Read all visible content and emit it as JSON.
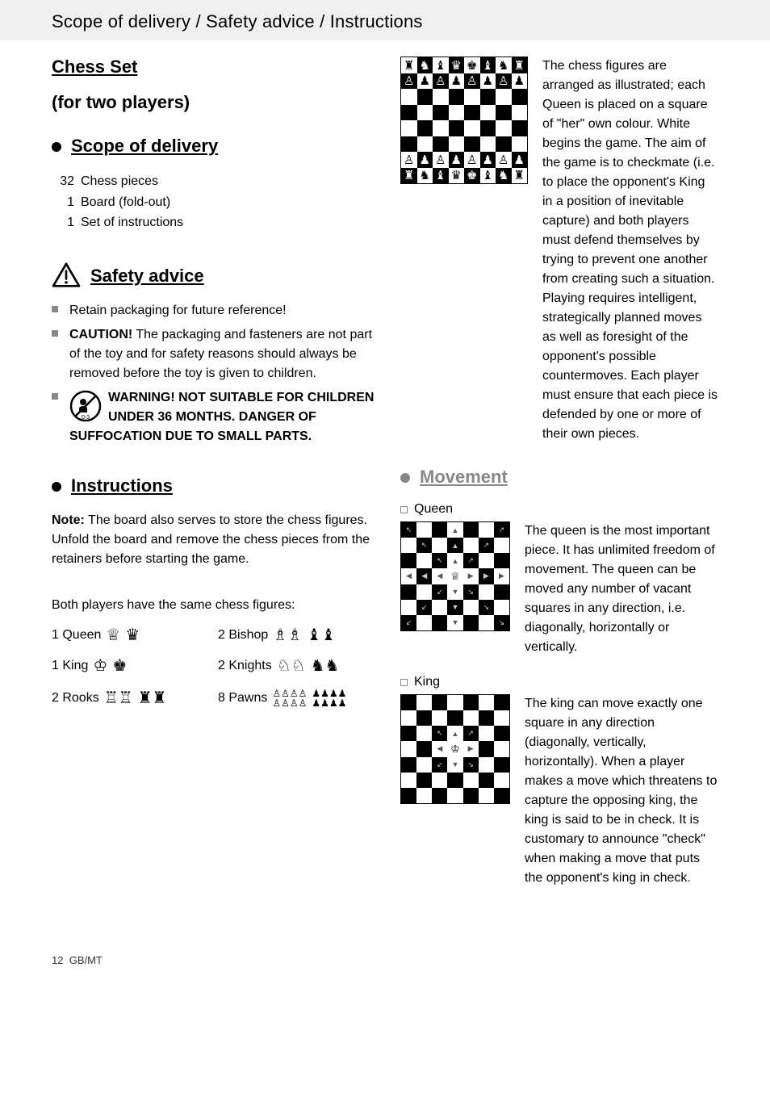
{
  "header": {
    "title": "Scope of delivery / Safety advice / Instructions"
  },
  "title": "Chess Set",
  "subtitle": "(for two players)",
  "sections": {
    "delivery": {
      "heading": "Scope of delivery",
      "items": [
        {
          "qty": "32",
          "label": "Chess pieces"
        },
        {
          "qty": "1",
          "label": "Board (fold-out)"
        },
        {
          "qty": "1",
          "label": "Set of instructions"
        }
      ]
    },
    "safety": {
      "heading": "Safety advice",
      "items": [
        {
          "text": "Retain packaging for future reference!"
        },
        {
          "caution_label": "CAUTION!",
          "text": " The packaging and fasteners are not part of the toy and for safety reasons should always be removed before the toy is given to children."
        },
        {
          "warning": "WARNING! NOT SUITABLE FOR CHILDREN UNDER 36 MONTHS. DANGER OF SUFFOCATION DUE TO SMALL PARTS."
        }
      ],
      "age_icon_label": "0-3"
    },
    "instructions": {
      "heading": "Instructions",
      "note_label": "Note:",
      "note_text": " The board also serves to store the chess figures. Unfold the board and remove the chess pieces from the retainers before starting the game.",
      "pieces_intro": "Both players have the same chess figures:",
      "pieces": [
        {
          "label": "1 Queen",
          "white": "♕",
          "black": "♛"
        },
        {
          "label": "2 Bishop",
          "white": "♗♗",
          "black": "♝♝"
        },
        {
          "label": "1 King",
          "white": "♔",
          "black": "♚"
        },
        {
          "label": "2 Knights",
          "white": "♘♘",
          "black": "♞♞"
        },
        {
          "label": "2 Rooks",
          "white": "♖♖",
          "black": "♜♜"
        },
        {
          "label": "8 Pawns",
          "white_row": "♙♙♙♙",
          "black_row": "♟♟♟♟",
          "stacked": true
        }
      ]
    },
    "setup": {
      "text": "The chess figures are arranged as illustrated; each Queen is placed on a square of \"her\" own colour. White begins the game. The aim of the game is to checkmate (i.e. to place the opponent's King in a position of inevitable capture) and both players must defend themselves by trying to prevent one another from creating such a situation. Playing requires intelligent, strategically planned moves as well as foresight of the opponent's possible countermoves. Each player must ensure that each piece is defended by one or more of their own pieces.",
      "board": {
        "size": 8,
        "pieces_row0": [
          "♜",
          "♞",
          "♝",
          "♛",
          "♚",
          "♝",
          "♞",
          "♜"
        ],
        "pieces_row1": [
          "♙",
          "♟",
          "♙",
          "♟",
          "♙",
          "♟",
          "♙",
          "♟"
        ],
        "pieces_row6": [
          "♙",
          "♟",
          "♙",
          "♟",
          "♙",
          "♟",
          "♙",
          "♟"
        ],
        "pieces_row7": [
          "♜",
          "♞",
          "♝",
          "♛",
          "♚",
          "♝",
          "♞",
          "♜"
        ]
      }
    },
    "movement": {
      "heading": "Movement",
      "queen": {
        "label": "Queen",
        "text": "The queen is the most important piece. It has unlimited freedom of movement. The queen can be moved any number of vacant squares in any direction, i.e. diagonally, horizontally or vertically.",
        "board_size": 7,
        "piece_pos": [
          3,
          3
        ],
        "piece": "♕"
      },
      "king": {
        "label": "King",
        "text": "The king can move exactly one square in any direction (diagonally, vertically, horizontally). When a player makes a move which threatens to capture the opposing king, the king is said to be in check. It is customary to announce \"check\" when making a move that puts the opponent's king in check.",
        "board_size": 7,
        "piece_pos": [
          3,
          3
        ],
        "piece": "♔"
      }
    }
  },
  "footer": {
    "page": "12",
    "region": "GB/MT"
  },
  "colors": {
    "header_bg": "#f0f0f0",
    "grey_bullet": "#888888",
    "text": "#000000"
  }
}
